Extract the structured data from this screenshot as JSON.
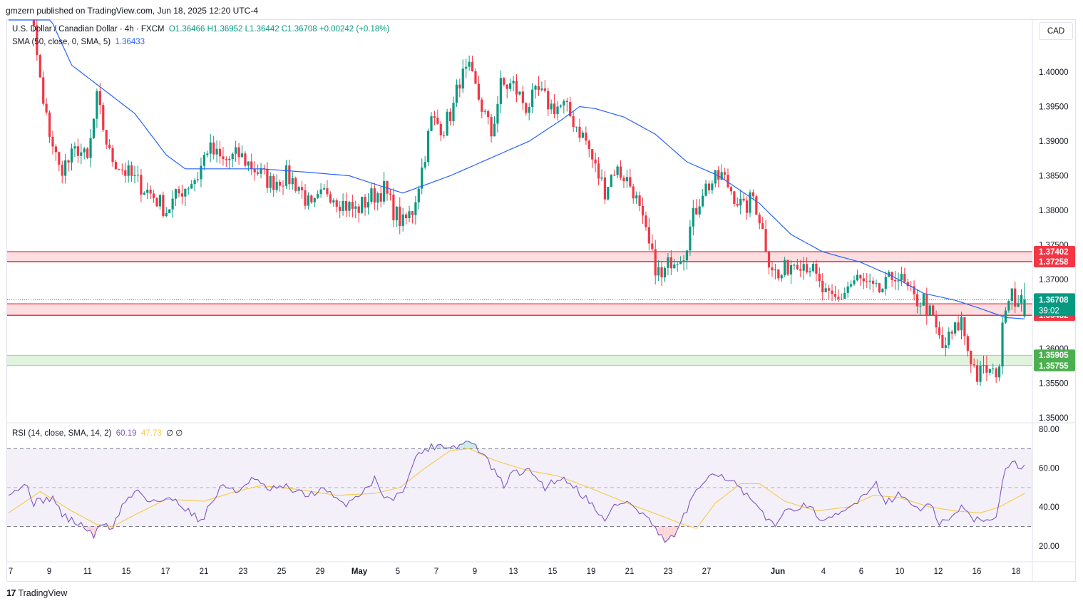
{
  "header": {
    "published": "gmzern published on TradingView.com, Jun 18, 2025 12:20 UTC-4"
  },
  "legend": {
    "instrument": "U.S. Dollar / Canadian Dollar · 4h · FXCM",
    "ohlc": "O1.36466 H1.36952 L1.36442 C1.36708 +0.00242 (+0.18%)",
    "sma_label": "SMA (50, close, 0, SMA, 5)",
    "sma_value": "1.36433",
    "rsi_label": "RSI (14, close, SMA, 14, 2)",
    "rsi_value": "60.19",
    "rsi_sma_value": "47.73",
    "rsi_extra": "∅ ∅"
  },
  "currency_button": "CAD",
  "footer": {
    "brand": "TradingView",
    "logo_mark": "17"
  },
  "colors": {
    "up": "#089981",
    "down": "#f23645",
    "sma": "#2962ff",
    "rsi": "#7e57c2",
    "rsi_sma": "#f7c948",
    "resistance_fill": "#fbd3d6",
    "support_fill": "#d5efd1"
  },
  "chart_data": [
    {
      "type": "candlestick",
      "title": "U.S. Dollar / Canadian Dollar · 4h · FXCM",
      "ylim": [
        1.3475,
        1.419
      ],
      "y_ticks": [
        "1.35000",
        "1.35500",
        "1.36000",
        "1.36500",
        "1.37000",
        "1.37500",
        "1.38000",
        "1.38500",
        "1.39000",
        "1.39500",
        "1.40000"
      ],
      "x_ticks": [
        "7",
        "9",
        "11",
        "15",
        "17",
        "21",
        "23",
        "25",
        "29",
        "May",
        "5",
        "7",
        "9",
        "13",
        "15",
        "19",
        "21",
        "23",
        "27",
        "Jun",
        "4",
        "6",
        "10",
        "12",
        "16",
        "18"
      ],
      "last_price": "1.36708",
      "countdown": "39:02",
      "zones": [
        {
          "kind": "resistance",
          "top": 1.37402,
          "bottom": 1.37258,
          "labels": [
            "1.37402",
            "1.37258"
          ]
        },
        {
          "kind": "resistance",
          "top": 1.36648,
          "bottom": 1.36482,
          "labels": [
            "1.36648",
            "1.36482"
          ]
        },
        {
          "kind": "support",
          "top": 1.35905,
          "bottom": 1.35755,
          "labels": [
            "1.35905",
            "1.35755"
          ]
        }
      ],
      "anchors": [
        [
          0,
          1.42
        ],
        [
          3,
          1.418
        ],
        [
          6,
          1.4155
        ],
        [
          8,
          1.406
        ],
        [
          11,
          1.395
        ],
        [
          16,
          1.386
        ],
        [
          19,
          1.387
        ],
        [
          22,
          1.389
        ],
        [
          25,
          1.387
        ],
        [
          28,
          1.396
        ],
        [
          32,
          1.388
        ],
        [
          36,
          1.386
        ],
        [
          41,
          1.384
        ],
        [
          46,
          1.382
        ],
        [
          50,
          1.38
        ],
        [
          55,
          1.383
        ],
        [
          60,
          1.385
        ],
        [
          63,
          1.389
        ],
        [
          68,
          1.387
        ],
        [
          73,
          1.388
        ],
        [
          78,
          1.386
        ],
        [
          83,
          1.384
        ],
        [
          88,
          1.385
        ],
        [
          92,
          1.3835
        ],
        [
          96,
          1.38
        ],
        [
          101,
          1.383
        ],
        [
          106,
          1.381
        ],
        [
          110,
          1.38
        ],
        [
          115,
          1.382
        ],
        [
          119,
          1.383
        ],
        [
          122,
          1.38
        ],
        [
          125,
          1.378
        ],
        [
          128,
          1.38
        ],
        [
          131,
          1.386
        ],
        [
          134,
          1.393
        ],
        [
          138,
          1.392
        ],
        [
          141,
          1.395
        ],
        [
          143,
          1.399
        ],
        [
          146,
          1.4
        ],
        [
          150,
          1.395
        ],
        [
          153,
          1.391
        ],
        [
          156,
          1.398
        ],
        [
          160,
          1.398
        ],
        [
          164,
          1.395
        ],
        [
          168,
          1.397
        ],
        [
          172,
          1.395
        ],
        [
          176,
          1.395
        ],
        [
          179,
          1.393
        ],
        [
          183,
          1.39
        ],
        [
          186,
          1.386
        ],
        [
          189,
          1.383
        ],
        [
          192,
          1.386
        ],
        [
          195,
          1.385
        ],
        [
          198,
          1.383
        ],
        [
          201,
          1.378
        ],
        [
          204,
          1.373
        ],
        [
          207,
          1.37
        ],
        [
          210,
          1.373
        ],
        [
          214,
          1.374
        ],
        [
          217,
          1.379
        ],
        [
          220,
          1.383
        ],
        [
          223,
          1.384
        ],
        [
          226,
          1.385
        ],
        [
          229,
          1.383
        ],
        [
          233,
          1.38
        ],
        [
          236,
          1.382
        ],
        [
          238,
          1.379
        ],
        [
          241,
          1.373
        ],
        [
          244,
          1.37
        ],
        [
          247,
          1.372
        ],
        [
          250,
          1.373
        ],
        [
          254,
          1.372
        ],
        [
          257,
          1.369
        ],
        [
          260,
          1.367
        ],
        [
          263,
          1.367
        ],
        [
          266,
          1.369
        ],
        [
          269,
          1.37
        ],
        [
          272,
          1.369
        ],
        [
          275,
          1.368
        ],
        [
          278,
          1.369
        ],
        [
          281,
          1.371
        ],
        [
          284,
          1.369
        ],
        [
          287,
          1.367
        ],
        [
          290,
          1.367
        ],
        [
          293,
          1.364
        ],
        [
          296,
          1.36
        ],
        [
          299,
          1.362
        ],
        [
          302,
          1.364
        ],
        [
          304,
          1.36
        ],
        [
          307,
          1.356
        ],
        [
          310,
          1.357
        ],
        [
          312,
          1.356
        ],
        [
          314,
          1.358
        ],
        [
          316,
          1.367
        ],
        [
          318,
          1.369
        ],
        [
          320,
          1.366
        ],
        [
          322,
          1.3671
        ]
      ],
      "sma_anchors": [
        [
          0,
          1.421
        ],
        [
          20,
          1.401
        ],
        [
          40,
          1.394
        ],
        [
          50,
          1.388
        ],
        [
          56,
          1.386
        ],
        [
          65,
          1.386
        ],
        [
          80,
          1.386
        ],
        [
          95,
          1.3855
        ],
        [
          108,
          1.385
        ],
        [
          118,
          1.3835
        ],
        [
          125,
          1.3825
        ],
        [
          140,
          1.385
        ],
        [
          155,
          1.388
        ],
        [
          165,
          1.39
        ],
        [
          175,
          1.393
        ],
        [
          181,
          1.395
        ],
        [
          186,
          1.3947
        ],
        [
          195,
          1.3935
        ],
        [
          205,
          1.391
        ],
        [
          215,
          1.387
        ],
        [
          225,
          1.385
        ],
        [
          238,
          1.381
        ],
        [
          248,
          1.3765
        ],
        [
          258,
          1.374
        ],
        [
          270,
          1.3725
        ],
        [
          280,
          1.3705
        ],
        [
          290,
          1.368
        ],
        [
          300,
          1.367
        ],
        [
          308,
          1.3658
        ],
        [
          316,
          1.3645
        ],
        [
          322,
          1.3643
        ]
      ]
    },
    {
      "type": "line",
      "title": "RSI (14, close, SMA, 14, 2)",
      "ylim": [
        14,
        82
      ],
      "y_ticks": [
        "20.00",
        "40.00",
        "60.00",
        "80.00"
      ],
      "levels": [
        70,
        50,
        30
      ],
      "rsi_anchors": [
        [
          0,
          48
        ],
        [
          6,
          51
        ],
        [
          8,
          42
        ],
        [
          14,
          45
        ],
        [
          17,
          36
        ],
        [
          20,
          33
        ],
        [
          24,
          30
        ],
        [
          27,
          25
        ],
        [
          30,
          32
        ],
        [
          33,
          29
        ],
        [
          36,
          41
        ],
        [
          41,
          49
        ],
        [
          44,
          44
        ],
        [
          48,
          43
        ],
        [
          53,
          44
        ],
        [
          57,
          38
        ],
        [
          61,
          33
        ],
        [
          65,
          44
        ],
        [
          68,
          52
        ],
        [
          72,
          47
        ],
        [
          77,
          55
        ],
        [
          82,
          49
        ],
        [
          88,
          50
        ],
        [
          94,
          46
        ],
        [
          100,
          49
        ],
        [
          106,
          41
        ],
        [
          110,
          45
        ],
        [
          116,
          54
        ],
        [
          120,
          44
        ],
        [
          124,
          46
        ],
        [
          130,
          68
        ],
        [
          136,
          72
        ],
        [
          142,
          71
        ],
        [
          146,
          74
        ],
        [
          150,
          68
        ],
        [
          154,
          58
        ],
        [
          157,
          51
        ],
        [
          160,
          58
        ],
        [
          166,
          58
        ],
        [
          170,
          50
        ],
        [
          174,
          55
        ],
        [
          178,
          53
        ],
        [
          182,
          46
        ],
        [
          186,
          40
        ],
        [
          189,
          32
        ],
        [
          192,
          41
        ],
        [
          196,
          43
        ],
        [
          200,
          37
        ],
        [
          203,
          34
        ],
        [
          206,
          25
        ],
        [
          209,
          22
        ],
        [
          212,
          28
        ],
        [
          216,
          42
        ],
        [
          220,
          52
        ],
        [
          223,
          59
        ],
        [
          226,
          56
        ],
        [
          229,
          54
        ],
        [
          233,
          47
        ],
        [
          236,
          42
        ],
        [
          240,
          34
        ],
        [
          243,
          32
        ],
        [
          247,
          38
        ],
        [
          251,
          41
        ],
        [
          255,
          38
        ],
        [
          259,
          32
        ],
        [
          263,
          36
        ],
        [
          267,
          40
        ],
        [
          271,
          47
        ],
        [
          275,
          52
        ],
        [
          278,
          43
        ],
        [
          282,
          46
        ],
        [
          285,
          44
        ],
        [
          289,
          38
        ],
        [
          292,
          41
        ],
        [
          295,
          32
        ],
        [
          298,
          33
        ],
        [
          302,
          40
        ],
        [
          305,
          35
        ],
        [
          309,
          32
        ],
        [
          313,
          36
        ],
        [
          316,
          60
        ],
        [
          318,
          65
        ],
        [
          320,
          61
        ],
        [
          322,
          60
        ]
      ],
      "sma_anchors": [
        [
          0,
          37
        ],
        [
          10,
          48
        ],
        [
          20,
          38
        ],
        [
          28,
          31
        ],
        [
          33,
          30
        ],
        [
          40,
          36
        ],
        [
          50,
          44
        ],
        [
          62,
          43
        ],
        [
          72,
          48
        ],
        [
          80,
          51
        ],
        [
          92,
          49
        ],
        [
          104,
          46
        ],
        [
          116,
          47
        ],
        [
          124,
          50
        ],
        [
          132,
          60
        ],
        [
          140,
          69
        ],
        [
          146,
          70
        ],
        [
          154,
          64
        ],
        [
          164,
          59
        ],
        [
          174,
          56
        ],
        [
          184,
          50
        ],
        [
          196,
          42
        ],
        [
          206,
          36
        ],
        [
          214,
          31
        ],
        [
          218,
          29
        ],
        [
          224,
          42
        ],
        [
          232,
          52
        ],
        [
          238,
          52
        ],
        [
          246,
          43
        ],
        [
          256,
          38
        ],
        [
          266,
          40
        ],
        [
          274,
          46
        ],
        [
          282,
          45
        ],
        [
          292,
          40
        ],
        [
          300,
          38
        ],
        [
          308,
          37
        ],
        [
          314,
          40
        ],
        [
          322,
          47
        ]
      ]
    }
  ]
}
